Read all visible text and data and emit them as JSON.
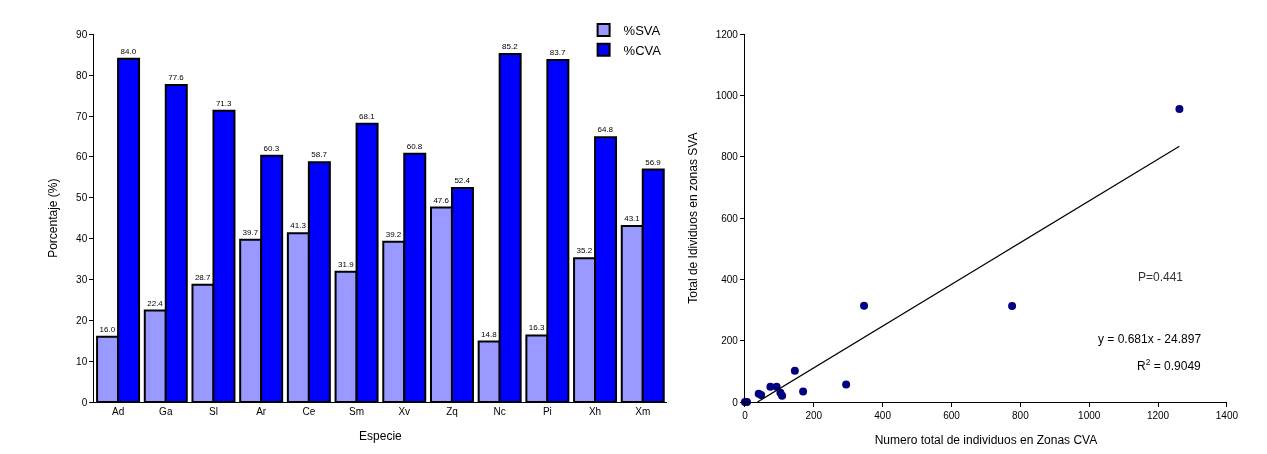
{
  "chart_data": [
    {
      "type": "bar",
      "xlabel": "Especie",
      "ylabel": "Porcentaje (%)",
      "categories": [
        "Ad",
        "Ga",
        "Sl",
        "Ar",
        "Ce",
        "Sm",
        "Xv",
        "Zq",
        "Nc",
        "Pi",
        "Xh",
        "Xm"
      ],
      "series": [
        {
          "name": "%SVA",
          "color": "#9999ff",
          "values": [
            16.0,
            22.4,
            28.7,
            39.7,
            41.3,
            31.9,
            39.2,
            47.6,
            14.8,
            16.3,
            35.2,
            43.1
          ],
          "value_labels": [
            "16.0",
            "22.4",
            "28.7",
            "39.7",
            "41.3",
            "31.9",
            "39.2",
            "47.6",
            "14.8",
            "16.3",
            "35.2",
            "43.1"
          ]
        },
        {
          "name": "%CVA",
          "color": "#0000ff",
          "values": [
            84.0,
            77.6,
            71.3,
            60.3,
            58.7,
            68.1,
            60.8,
            52.4,
            85.2,
            83.7,
            64.8,
            56.9
          ],
          "value_labels": [
            "84.0",
            "77.6",
            "71.3",
            "60.3",
            "58.7",
            "68.1",
            "60.8",
            "52.4",
            "85.2",
            "83.7",
            "64.8",
            "56.9"
          ]
        }
      ],
      "ylim": [
        0,
        90
      ],
      "yticks": [
        0,
        10,
        20,
        30,
        40,
        50,
        60,
        70,
        80,
        90
      ],
      "legend": "top right"
    },
    {
      "type": "scatter",
      "xlabel": "Numero total de individuos en Zonas CVA",
      "ylabel": "Total de Idividuos en zonas SVA",
      "series": [
        {
          "type": "scatter",
          "marker": "circle",
          "color": "#000080",
          "x": [
            1262,
            346,
            776,
            145,
            294,
            169,
            74,
            92,
            103,
            108,
            40,
            47,
            0,
            6
          ],
          "values": [
            956,
            314,
            313,
            102,
            57,
            34,
            50,
            50,
            30,
            20,
            27,
            23,
            0,
            0
          ]
        },
        {
          "type": "line",
          "color": "#000000",
          "x": [
            36.6,
            1262
          ],
          "values": [
            0,
            835
          ]
        }
      ],
      "xlim": [
        0,
        1400
      ],
      "xticks": [
        0,
        200,
        400,
        600,
        800,
        1000,
        1200,
        1400
      ],
      "ylim": [
        0,
        1200
      ],
      "yticks": [
        0,
        200,
        400,
        600,
        800,
        1000,
        1200
      ],
      "annotations": [
        "P=0.441",
        "y = 0.681x - 24.897",
        "R$^{2}$ = 0.9049"
      ],
      "legend": false
    }
  ]
}
